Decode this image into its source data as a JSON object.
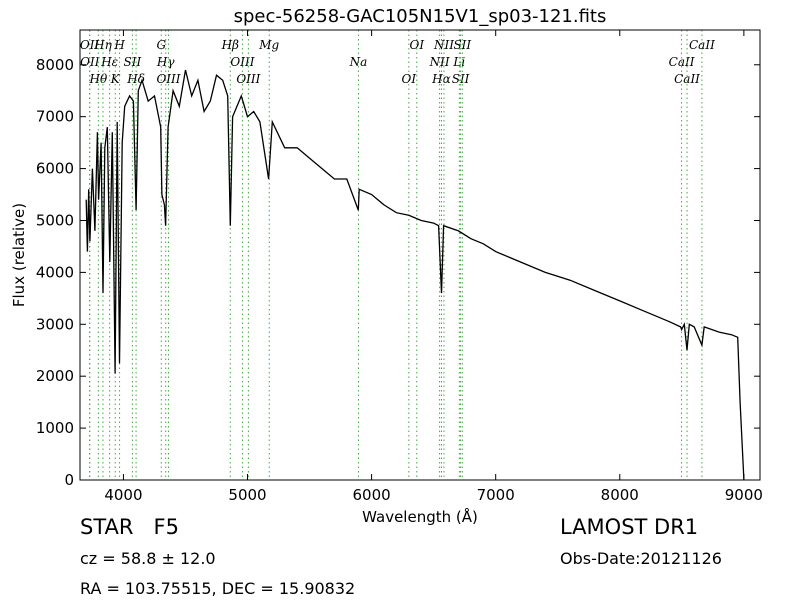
{
  "chart_data": {
    "type": "line",
    "title": "spec-56258-GAC105N15V1_sp03-121.fits",
    "x_label": "Wavelength (Å)",
    "y_label": "Flux (relative)",
    "xlim": [
      3650,
      9130
    ],
    "ylim": [
      0,
      8670
    ],
    "xticks": [
      4000,
      5000,
      6000,
      7000,
      8000,
      9000
    ],
    "yticks": [
      0,
      1000,
      2000,
      3000,
      4000,
      5000,
      6000,
      7000,
      8000
    ],
    "x": [
      3700,
      3710,
      3720,
      3730,
      3750,
      3770,
      3790,
      3800,
      3820,
      3835,
      3850,
      3870,
      3890,
      3910,
      3933,
      3950,
      3968,
      3990,
      4010,
      4050,
      4080,
      4102,
      4120,
      4150,
      4200,
      4250,
      4300,
      4310,
      4330,
      4340,
      4360,
      4400,
      4450,
      4500,
      4550,
      4600,
      4650,
      4700,
      4750,
      4800,
      4840,
      4861,
      4880,
      4950,
      5000,
      5050,
      5100,
      5170,
      5200,
      5300,
      5400,
      5500,
      5600,
      5700,
      5800,
      5893,
      5900,
      6000,
      6100,
      6200,
      6300,
      6400,
      6500,
      6540,
      6563,
      6580,
      6700,
      6800,
      6900,
      7000,
      7200,
      7400,
      7600,
      7800,
      8000,
      8200,
      8400,
      8490,
      8498,
      8520,
      8542,
      8560,
      8600,
      8662,
      8680,
      8800,
      8900,
      8950,
      8970,
      9000
    ],
    "series": [
      {
        "name": "flux",
        "color": "#000000",
        "values": [
          5400,
          4400,
          5600,
          4600,
          6000,
          4800,
          6700,
          5400,
          6500,
          3600,
          6400,
          6800,
          4200,
          6700,
          2050,
          6900,
          2250,
          6500,
          7200,
          7400,
          7300,
          5200,
          7500,
          7700,
          7300,
          7400,
          6800,
          5500,
          5300,
          4900,
          6800,
          7500,
          7200,
          7900,
          7400,
          7700,
          7100,
          7300,
          7800,
          7700,
          7400,
          4900,
          7000,
          7400,
          7000,
          7100,
          6900,
          5800,
          6900,
          6400,
          6400,
          6200,
          6000,
          5800,
          5800,
          5200,
          5600,
          5500,
          5300,
          5150,
          5100,
          5000,
          4950,
          4900,
          3600,
          4900,
          4800,
          4650,
          4550,
          4400,
          4200,
          4000,
          3850,
          3650,
          3450,
          3250,
          3050,
          2950,
          2900,
          3000,
          2500,
          3000,
          2950,
          2600,
          2950,
          2850,
          2800,
          2750,
          1500,
          0
        ]
      }
    ],
    "line_color": "#44aa44",
    "lines": [
      {
        "wavelength": 3727,
        "label": "OII"
      },
      {
        "wavelength": 3729,
        "label": "OII"
      },
      {
        "wavelength": 3798,
        "label": "Hθ"
      },
      {
        "wavelength": 3835,
        "label": "Hη"
      },
      {
        "wavelength": 3889,
        "label": "Hε"
      },
      {
        "wavelength": 3934,
        "label": "K"
      },
      {
        "wavelength": 3969,
        "label": "H"
      },
      {
        "wavelength": 4072,
        "label": "SII"
      },
      {
        "wavelength": 4102,
        "label": "Hδ"
      },
      {
        "wavelength": 4305,
        "label": "G"
      },
      {
        "wavelength": 4341,
        "label": "Hγ"
      },
      {
        "wavelength": 4363,
        "label": "OIII"
      },
      {
        "wavelength": 4861,
        "label": "Hβ"
      },
      {
        "wavelength": 4959,
        "label": "OIII"
      },
      {
        "wavelength": 5007,
        "label": "OIII"
      },
      {
        "wavelength": 5175,
        "label": "Mg"
      },
      {
        "wavelength": 5894,
        "label": "Na"
      },
      {
        "wavelength": 6300,
        "label": "OI"
      },
      {
        "wavelength": 6364,
        "label": "OI"
      },
      {
        "wavelength": 6548,
        "label": "NII"
      },
      {
        "wavelength": 6563,
        "label": "Hα"
      },
      {
        "wavelength": 6583,
        "label": "NII"
      },
      {
        "wavelength": 6707,
        "label": "Li"
      },
      {
        "wavelength": 6717,
        "label": "SII"
      },
      {
        "wavelength": 6731,
        "label": "SII"
      },
      {
        "wavelength": 8498,
        "label": "CaII"
      },
      {
        "wavelength": 8542,
        "label": "CaII"
      },
      {
        "wavelength": 8662,
        "label": "CaII"
      }
    ]
  },
  "info": {
    "class": "STAR   F5",
    "cz": "cz = 58.8 ± 12.0",
    "coords": "RA = 103.75515, DEC = 15.90832",
    "survey": "LAMOST DR1",
    "date": "Obs-Date:20121126"
  }
}
